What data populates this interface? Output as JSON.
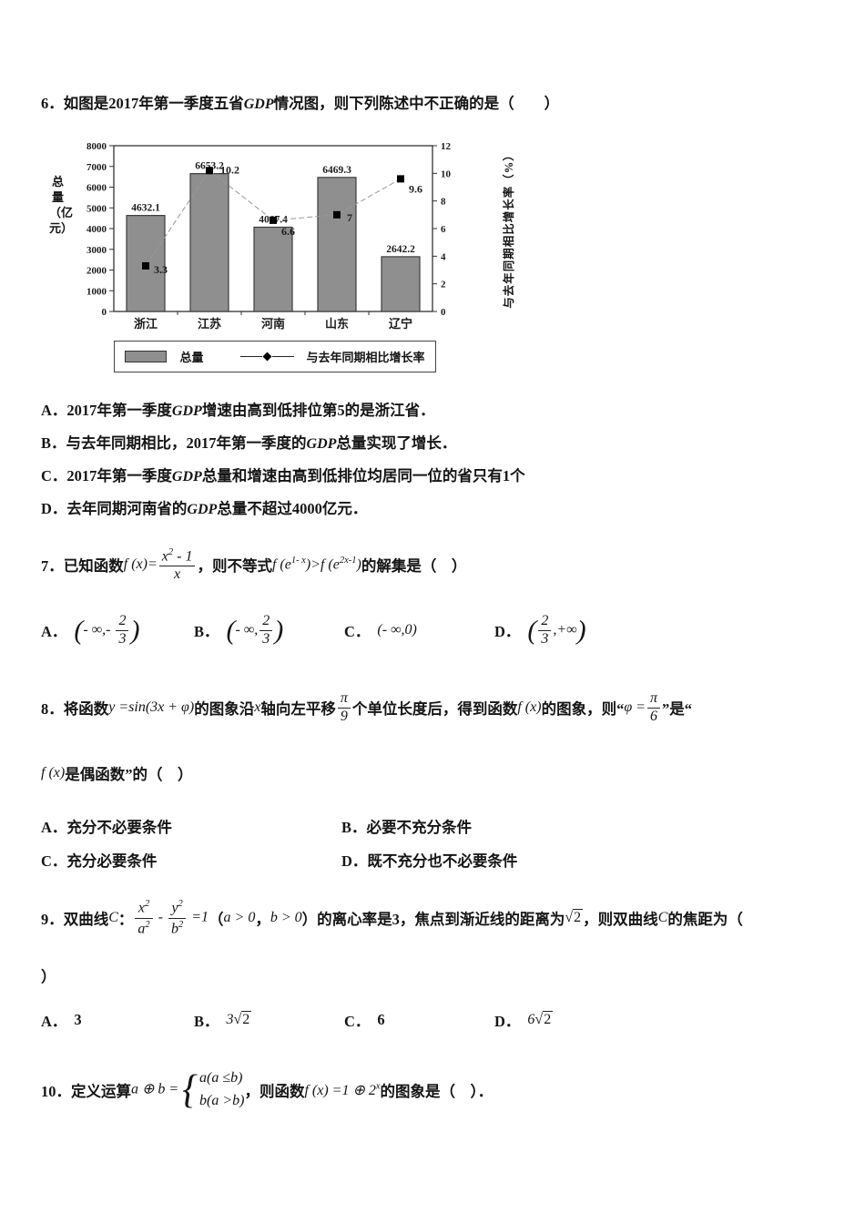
{
  "q6": {
    "no": "6．",
    "s1": "如图是2017年第一季度五省",
    "gdp": "GDP",
    "s2": "情况图，则下列陈述中不正确的是（　　）",
    "options": [
      {
        "label": "A．",
        "p1": "2017年第一季度",
        "gdp": "GDP",
        "p2": "增速由高到低排位第5的是浙江省．"
      },
      {
        "label": "B．",
        "p1": "与去年同期相比，2017年第一季度的",
        "gdp": "GDP",
        "p2": "总量实现了增长．"
      },
      {
        "label": "C．",
        "p1": "2017年第一季度",
        "gdp": "GDP",
        "p2": "总量和增速由高到低排位均居同一位的省只有1个"
      },
      {
        "label": "D．",
        "p1": "去年同期河南省的",
        "gdp": "GDP",
        "p2": "总量不超过4000亿元．"
      }
    ]
  },
  "chart_data": {
    "type": "bar+line",
    "categories": [
      "浙江",
      "江苏",
      "河南",
      "山东",
      "辽宁"
    ],
    "series": [
      {
        "name": "总量",
        "type": "bar",
        "axis": "left",
        "values": [
          4632.1,
          6653.2,
          4067.4,
          6469.3,
          2642.2
        ]
      },
      {
        "name": "与去年同期相比增长率",
        "type": "line",
        "axis": "right",
        "values": [
          3.3,
          10.2,
          6.6,
          7,
          9.6
        ]
      }
    ],
    "left_axis": {
      "label": "总量（亿元）",
      "min": 0,
      "max": 8000,
      "step": 1000
    },
    "right_axis": {
      "label": "与去年同期相比增长率（%）",
      "min": 0,
      "max": 12,
      "step": 2
    },
    "legend_position": "bottom",
    "grid": false
  },
  "q7": {
    "no": "7．",
    "s1": "已知函数",
    "m1": "f (x)=<span class='frac'><span class='num'>x<sup>2</sup> - 1</span><span class='den'>x</span></span>",
    "s2": "，则不等式",
    "m2": "f (e<sup>1- x</sup>)&gt;f (e<sup>2x-1</sup>)",
    "s3": "的解集是（　）",
    "options": [
      {
        "label": "A．",
        "m": "<span class='bigp'>(</span>- ∞,- <span class='frac'><span class='num'>2</span><span class='den'>3</span></span><span class='bigp'>)</span>"
      },
      {
        "label": "B．",
        "m": "<span class='bigp'>(</span>- ∞,<span class='frac'><span class='num'>2</span><span class='den'>3</span></span><span class='bigp'>)</span>"
      },
      {
        "label": "C．",
        "m": "(- ∞,0)"
      },
      {
        "label": "D．",
        "m": "<span class='bigp'>(</span><span class='frac'><span class='num'>2</span><span class='den'>3</span></span>,+∞<span class='bigp'>)</span>"
      }
    ]
  },
  "q8": {
    "no": "8．",
    "s1": "将函数",
    "m1": "y =sin(3x + φ)",
    "s2": "的图象沿",
    "m2": "x",
    "s3": "轴向左平移",
    "m3": "<span class='frac'><span class='num'>π</span><span class='den'>9</span></span>",
    "s4": "个单位长度后，得到函数",
    "m4": "f (x)",
    "s5": "的图象，则“",
    "m5": "φ =<span class='frac'><span class='num'>π</span><span class='den'>6</span></span>",
    "s6": "”是“",
    "m6": "f (x)",
    "s7": "是偶函数”的（　）",
    "options": [
      {
        "label": "A．",
        "text": "充分不必要条件"
      },
      {
        "label": "B．",
        "text": "必要不充分条件"
      },
      {
        "label": "C．",
        "text": "充分必要条件"
      },
      {
        "label": "D．",
        "text": "既不充分也不必要条件"
      }
    ]
  },
  "q9": {
    "no": "9．",
    "s1": "双曲线",
    "m0": "C",
    "colon": "：",
    "m1": "<span class='frac'><span class='num'>x<sup>2</sup></span><span class='den'>a<sup>2</sup></span></span> - <span class='frac'><span class='num'>y<sup>2</sup></span><span class='den'>b<sup>2</sup></span></span> =1",
    "s2": "（",
    "m2": "a &gt; 0",
    "s3": "，",
    "m3": "b &gt; 0",
    "s4": "）的离心率是3，焦点到渐近线的距离为",
    "m4": "<span class='sqrt'>√<span class='sv'>2</span></span>",
    "s5": "，则双曲线",
    "m5": "C",
    "s6": "的焦距为（",
    "close": "）",
    "options": [
      {
        "label": "A．",
        "m": "3"
      },
      {
        "label": "B．",
        "m": "3<span class='sqrt'>√<span class='sv'>2</span></span>"
      },
      {
        "label": "C．",
        "m": "6"
      },
      {
        "label": "D．",
        "m": "6<span class='sqrt'>√<span class='sv'>2</span></span>"
      }
    ]
  },
  "q10": {
    "no": "10．",
    "s1": "定义运算",
    "m1": "a ⊕ b =<span class='brace'>{</span><span class='cases'><span>a(a ≤b)</span><span>b(a &gt;b)</span></span>",
    "s2": "，则函数",
    "m2": "f (x) =1 ⊕ 2<sup>x</sup>",
    "s3": "的图象是（　）．"
  }
}
